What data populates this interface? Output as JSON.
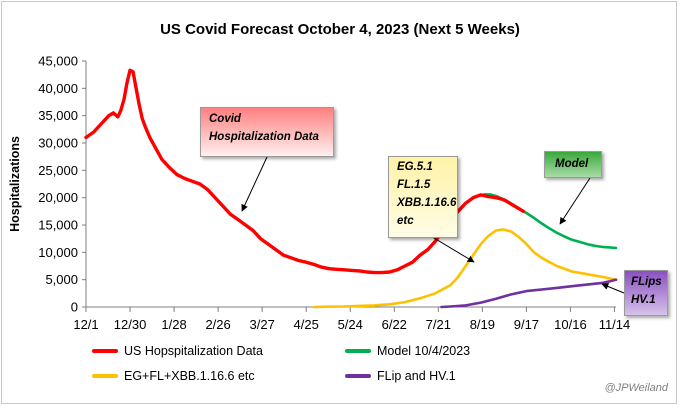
{
  "chart_data": {
    "type": "line",
    "title": "US Covid Forecast October 4, 2023 (Next 5 Weeks)",
    "ylabel": "Hospitalizations",
    "xlabel": "",
    "ylim": [
      0,
      45000
    ],
    "yticks": [
      0,
      5000,
      10000,
      15000,
      20000,
      25000,
      30000,
      35000,
      40000,
      45000
    ],
    "ytick_labels": [
      "0",
      "5,000",
      "10,000",
      "15,000",
      "20,000",
      "25,000",
      "30,000",
      "35,000",
      "40,000",
      "45,000"
    ],
    "xlim": [
      0,
      349
    ],
    "xticks": [
      0,
      29,
      58,
      87,
      116,
      145,
      174,
      203,
      232,
      261,
      290,
      319,
      348
    ],
    "xtick_labels": [
      "12/1",
      "12/30",
      "1/28",
      "2/26",
      "3/27",
      "4/25",
      "5/24",
      "6/22",
      "7/21",
      "8/19",
      "9/17",
      "10/16",
      "11/14"
    ],
    "grid": false,
    "legend_position": "bottom",
    "series": [
      {
        "name": "US Hopspitalization Data",
        "color": "#ff0000",
        "x": [
          0,
          5,
          10,
          15,
          18,
          21,
          23,
          25,
          27,
          29,
          31,
          33,
          35,
          37,
          39,
          42,
          45,
          50,
          55,
          60,
          65,
          70,
          75,
          80,
          85,
          90,
          95,
          100,
          105,
          110,
          115,
          120,
          125,
          130,
          135,
          140,
          145,
          150,
          155,
          160,
          165,
          170,
          175,
          180,
          185,
          190,
          195,
          200,
          205,
          210,
          215,
          220,
          225,
          230,
          235,
          240,
          245,
          250,
          255,
          260,
          265,
          270,
          273,
          276,
          279,
          282,
          285,
          288
        ],
        "y": [
          31000,
          32000,
          33500,
          35000,
          35500,
          34800,
          36000,
          38000,
          41000,
          43300,
          43000,
          40000,
          37000,
          34500,
          33000,
          31000,
          29500,
          27000,
          25500,
          24200,
          23500,
          23000,
          22500,
          21500,
          20000,
          18500,
          17000,
          16000,
          15000,
          14000,
          12500,
          11500,
          10500,
          9500,
          9000,
          8500,
          8200,
          7800,
          7300,
          7000,
          6900,
          6800,
          6700,
          6600,
          6400,
          6300,
          6300,
          6400,
          6800,
          7500,
          8200,
          9500,
          10500,
          12000,
          14000,
          16000,
          17500,
          19000,
          20000,
          20500,
          20200,
          20000,
          19800,
          19500,
          19000,
          18500,
          18000,
          17500
        ]
      },
      {
        "name": "Model 10/4/2023",
        "color": "#00b050",
        "x": [
          262,
          266,
          270,
          275,
          280,
          285,
          290,
          295,
          300,
          305,
          310,
          315,
          320,
          325,
          330,
          335,
          340,
          345,
          349
        ],
        "y": [
          20600,
          20600,
          20300,
          19700,
          18900,
          18000,
          17200,
          16300,
          15300,
          14400,
          13600,
          12900,
          12300,
          11900,
          11500,
          11200,
          11000,
          10900,
          10800
        ]
      },
      {
        "name": "EG+FL+XBB.1.16.6 etc",
        "color": "#ffc000",
        "x": [
          150,
          160,
          170,
          180,
          190,
          200,
          210,
          220,
          230,
          240,
          245,
          250,
          255,
          260,
          265,
          270,
          275,
          280,
          285,
          290,
          295,
          300,
          310,
          320,
          330,
          340,
          349
        ],
        "y": [
          0,
          50,
          100,
          200,
          300,
          500,
          900,
          1600,
          2500,
          4000,
          5500,
          7500,
          9500,
          11500,
          13000,
          14000,
          14200,
          13800,
          12800,
          11500,
          10000,
          9000,
          7500,
          6500,
          6000,
          5500,
          5000
        ]
      },
      {
        "name": "FLip and HV.1",
        "color": "#7030a0",
        "x": [
          234,
          240,
          250,
          260,
          270,
          280,
          290,
          300,
          310,
          320,
          330,
          340,
          345,
          349
        ],
        "y": [
          0,
          100,
          300,
          800,
          1500,
          2300,
          2900,
          3200,
          3500,
          3800,
          4100,
          4400,
          4700,
          5000
        ]
      }
    ],
    "annotations": [
      {
        "lines": [
          "Covid",
          "Hospitalization Data"
        ]
      },
      {
        "lines": [
          "EG.5.1",
          "FL.1.5",
          "XBB.1.16.6",
          "etc"
        ]
      },
      {
        "lines": [
          "Model"
        ]
      },
      {
        "lines": [
          "FLips",
          "HV.1"
        ]
      }
    ],
    "credit": "@JPWeiland"
  }
}
